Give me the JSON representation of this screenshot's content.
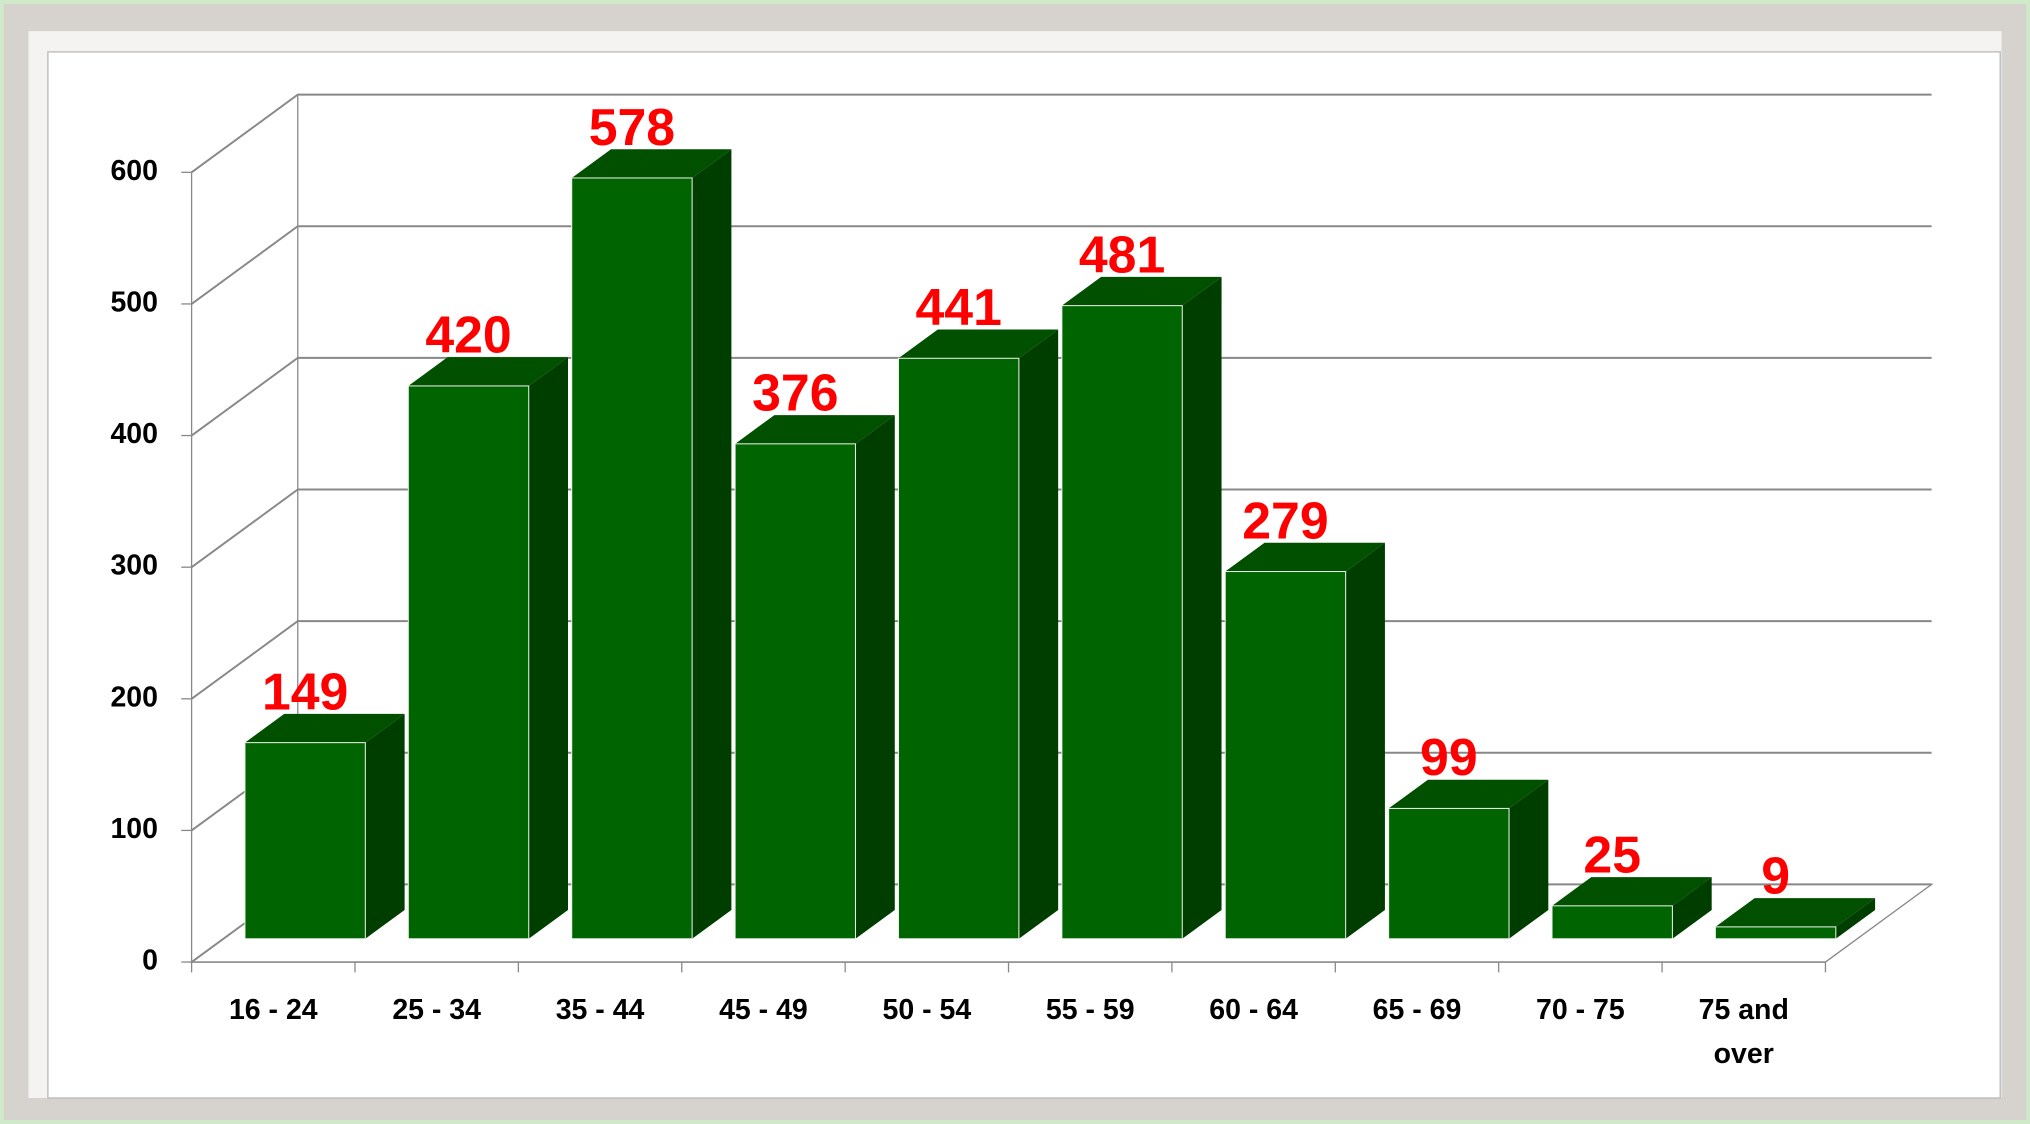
{
  "chart_data": {
    "type": "bar3d",
    "categories": [
      "16 - 24",
      "25 - 34",
      "35 - 44",
      "45 - 49",
      "50 - 54",
      "55 - 59",
      "60 - 64",
      "65 - 69",
      "70 - 75",
      "75 and over"
    ],
    "values": [
      149,
      420,
      578,
      376,
      441,
      481,
      279,
      99,
      25,
      9
    ],
    "color": "#006400",
    "label_color": "#ff0000",
    "ylim": [
      0,
      600
    ],
    "yticks": [
      0,
      100,
      200,
      300,
      400,
      500,
      600
    ],
    "grid": true
  }
}
